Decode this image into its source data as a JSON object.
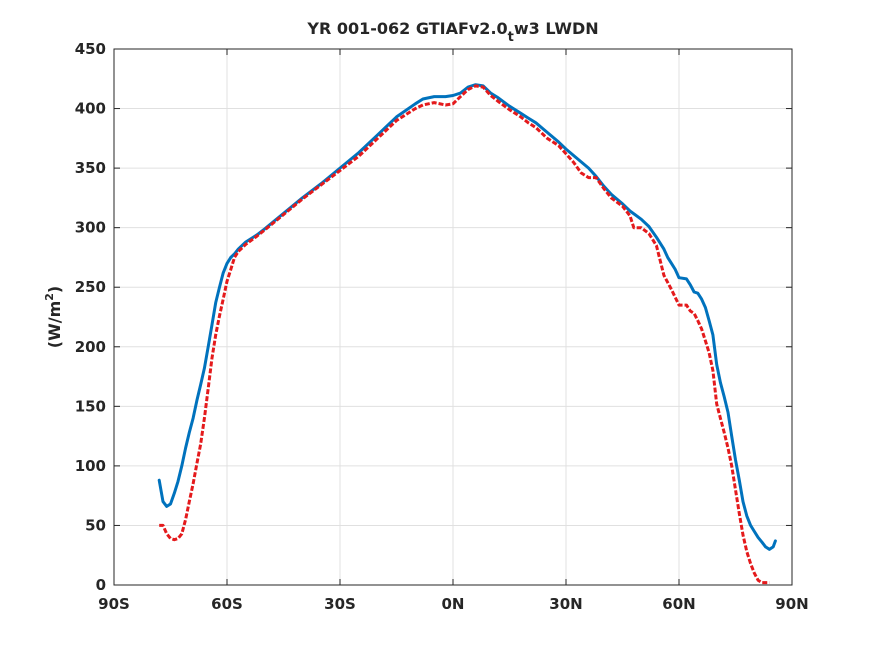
{
  "chart_data": {
    "type": "line",
    "title": {
      "main": "YR 001-062 GTIAFv2.0",
      "subscript": "t",
      "suffix": "w3 LWDN"
    },
    "xlabel": "",
    "ylabel": {
      "prefix": "(W/m",
      "superscript": "2",
      "suffix": ")"
    },
    "xlim": [
      -90,
      90
    ],
    "ylim": [
      0,
      450
    ],
    "grid": true,
    "x_ticks": [
      {
        "value": -90,
        "label": "90S"
      },
      {
        "value": -60,
        "label": "60S"
      },
      {
        "value": -30,
        "label": "30S"
      },
      {
        "value": 0,
        "label": "0N"
      },
      {
        "value": 30,
        "label": "30N"
      },
      {
        "value": 60,
        "label": "60N"
      },
      {
        "value": 90,
        "label": "90N"
      }
    ],
    "y_ticks": [
      0,
      50,
      100,
      150,
      200,
      250,
      300,
      350,
      400,
      450
    ],
    "series": [
      {
        "color": "#0072bd",
        "style": "solid",
        "points": [
          [
            -78,
            88
          ],
          [
            -77,
            70
          ],
          [
            -76,
            66
          ],
          [
            -75,
            68
          ],
          [
            -74,
            77
          ],
          [
            -73,
            87
          ],
          [
            -72,
            100
          ],
          [
            -71,
            115
          ],
          [
            -70,
            128
          ],
          [
            -69,
            140
          ],
          [
            -68,
            155
          ],
          [
            -67,
            168
          ],
          [
            -66,
            182
          ],
          [
            -65,
            200
          ],
          [
            -64,
            218
          ],
          [
            -63,
            237
          ],
          [
            -62,
            250
          ],
          [
            -61,
            262
          ],
          [
            -60,
            270
          ],
          [
            -59,
            275
          ],
          [
            -58,
            278
          ],
          [
            -57,
            282
          ],
          [
            -56,
            285
          ],
          [
            -55,
            288
          ],
          [
            -52,
            294
          ],
          [
            -50,
            299
          ],
          [
            -45,
            312
          ],
          [
            -40,
            325
          ],
          [
            -35,
            337
          ],
          [
            -30,
            350
          ],
          [
            -25,
            363
          ],
          [
            -20,
            378
          ],
          [
            -15,
            393
          ],
          [
            -10,
            404
          ],
          [
            -8,
            408
          ],
          [
            -5,
            410
          ],
          [
            -2,
            410
          ],
          [
            0,
            411
          ],
          [
            2,
            413
          ],
          [
            4,
            418
          ],
          [
            6,
            420
          ],
          [
            8,
            419
          ],
          [
            10,
            413
          ],
          [
            12,
            409
          ],
          [
            15,
            402
          ],
          [
            18,
            396
          ],
          [
            20,
            392
          ],
          [
            22,
            388
          ],
          [
            25,
            380
          ],
          [
            28,
            372
          ],
          [
            30,
            366
          ],
          [
            33,
            358
          ],
          [
            36,
            350
          ],
          [
            38,
            343
          ],
          [
            40,
            335
          ],
          [
            42,
            328
          ],
          [
            45,
            320
          ],
          [
            47,
            314
          ],
          [
            50,
            307
          ],
          [
            52,
            301
          ],
          [
            54,
            292
          ],
          [
            56,
            282
          ],
          [
            57,
            275
          ],
          [
            58,
            270
          ],
          [
            59,
            265
          ],
          [
            60,
            258
          ],
          [
            62,
            257
          ],
          [
            63,
            252
          ],
          [
            64,
            246
          ],
          [
            65,
            245
          ],
          [
            66,
            240
          ],
          [
            67,
            233
          ],
          [
            68,
            222
          ],
          [
            69,
            210
          ],
          [
            70,
            185
          ],
          [
            71,
            170
          ],
          [
            72,
            158
          ],
          [
            73,
            145
          ],
          [
            74,
            125
          ],
          [
            75,
            105
          ],
          [
            76,
            88
          ],
          [
            77,
            70
          ],
          [
            78,
            58
          ],
          [
            79,
            50
          ],
          [
            80,
            45
          ],
          [
            81,
            40
          ],
          [
            82,
            36
          ],
          [
            83,
            32
          ],
          [
            84,
            30
          ],
          [
            85,
            32
          ],
          [
            85.6,
            37
          ]
        ]
      },
      {
        "color": "#e41a1c",
        "style": "dashed",
        "points": [
          [
            -78,
            50
          ],
          [
            -77,
            50
          ],
          [
            -76,
            43
          ],
          [
            -75,
            39
          ],
          [
            -74,
            38
          ],
          [
            -73,
            39
          ],
          [
            -72,
            43
          ],
          [
            -71,
            55
          ],
          [
            -70,
            70
          ],
          [
            -69,
            85
          ],
          [
            -68,
            102
          ],
          [
            -67,
            118
          ],
          [
            -66,
            140
          ],
          [
            -65,
            165
          ],
          [
            -64,
            190
          ],
          [
            -63,
            210
          ],
          [
            -62,
            226
          ],
          [
            -61,
            240
          ],
          [
            -60,
            255
          ],
          [
            -59,
            265
          ],
          [
            -58,
            275
          ],
          [
            -57,
            280
          ],
          [
            -56,
            283
          ],
          [
            -55,
            286
          ],
          [
            -52,
            293
          ],
          [
            -50,
            298
          ],
          [
            -45,
            311
          ],
          [
            -40,
            324
          ],
          [
            -35,
            336
          ],
          [
            -30,
            348
          ],
          [
            -25,
            360
          ],
          [
            -20,
            375
          ],
          [
            -15,
            390
          ],
          [
            -10,
            400
          ],
          [
            -8,
            403
          ],
          [
            -5,
            405
          ],
          [
            -2,
            403
          ],
          [
            0,
            404
          ],
          [
            2,
            410
          ],
          [
            4,
            416
          ],
          [
            6,
            419
          ],
          [
            8,
            418
          ],
          [
            10,
            411
          ],
          [
            12,
            406
          ],
          [
            15,
            399
          ],
          [
            18,
            393
          ],
          [
            20,
            388
          ],
          [
            22,
            384
          ],
          [
            25,
            375
          ],
          [
            28,
            369
          ],
          [
            30,
            362
          ],
          [
            32,
            355
          ],
          [
            34,
            346
          ],
          [
            36,
            342
          ],
          [
            38,
            342
          ],
          [
            40,
            333
          ],
          [
            42,
            325
          ],
          [
            45,
            318
          ],
          [
            47,
            310
          ],
          [
            48,
            300
          ],
          [
            50,
            300
          ],
          [
            52,
            295
          ],
          [
            54,
            285
          ],
          [
            56,
            260
          ],
          [
            58,
            248
          ],
          [
            60,
            235
          ],
          [
            62,
            235
          ],
          [
            63,
            230
          ],
          [
            64,
            228
          ],
          [
            65,
            222
          ],
          [
            66,
            215
          ],
          [
            67,
            205
          ],
          [
            68,
            195
          ],
          [
            69,
            180
          ],
          [
            70,
            152
          ],
          [
            71,
            140
          ],
          [
            72,
            128
          ],
          [
            73,
            115
          ],
          [
            74,
            100
          ],
          [
            75,
            80
          ],
          [
            76,
            60
          ],
          [
            77,
            42
          ],
          [
            78,
            28
          ],
          [
            79,
            18
          ],
          [
            80,
            10
          ],
          [
            81,
            4
          ],
          [
            82,
            2
          ],
          [
            83,
            2
          ],
          [
            84,
            2
          ]
        ]
      }
    ]
  }
}
